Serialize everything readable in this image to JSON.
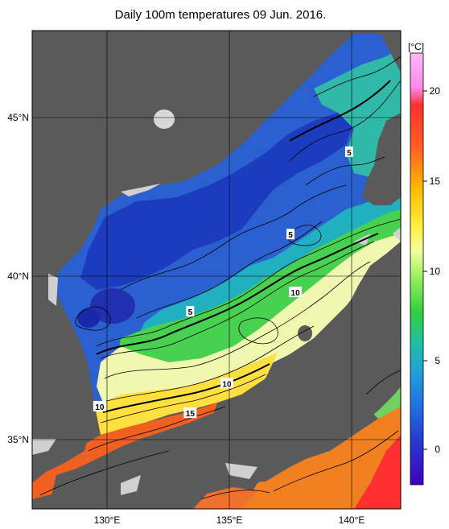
{
  "title": "Daily 100m temperatures 09 Jun. 2016.",
  "map": {
    "lat_ticks": [
      {
        "label": "45°N",
        "value": 45
      },
      {
        "label": "40°N",
        "value": 40
      },
      {
        "label": "35°N",
        "value": 35
      }
    ],
    "lon_ticks": [
      {
        "label": "130°E",
        "value": 130
      },
      {
        "label": "135°E",
        "value": 135
      },
      {
        "label": "140°E",
        "value": 140
      }
    ],
    "contour_labels": [
      {
        "text": "5",
        "lon": 139.9,
        "lat": 43.9
      },
      {
        "text": "5",
        "lon": 137.5,
        "lat": 41.3
      },
      {
        "text": "10",
        "lon": 137.7,
        "lat": 39.5
      },
      {
        "text": "5",
        "lon": 133.4,
        "lat": 38.9
      },
      {
        "text": "10",
        "lon": 134.9,
        "lat": 36.7
      },
      {
        "text": "10",
        "lon": 129.7,
        "lat": 36.0
      },
      {
        "text": "15",
        "lon": 133.4,
        "lat": 35.8
      }
    ]
  },
  "colorbar": {
    "unit": "[°C]",
    "ticks": [
      "20",
      "15",
      "10",
      "5",
      "0"
    ],
    "colors": {
      "top": "#ff88ee",
      "t20": "#ff2020",
      "t15": "#ffd800",
      "t12": "#d8ffa0",
      "t10": "#5ce05a",
      "t5": "#20a8c8",
      "t0": "#2828d8",
      "bottom": "#3a00c0"
    }
  }
}
